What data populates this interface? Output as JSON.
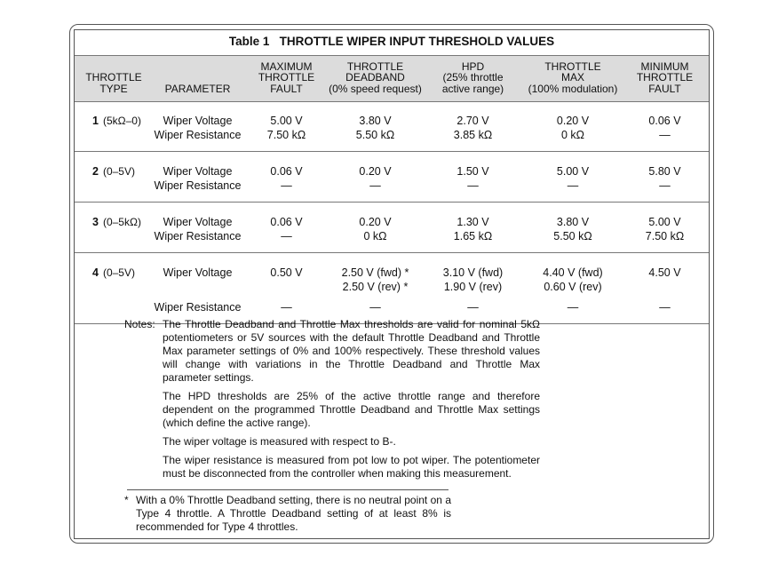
{
  "title": "Table 1   THROTTLE WIPER INPUT THRESHOLD VALUES",
  "table": {
    "headers": [
      [
        "THROTTLE",
        "TYPE"
      ],
      [
        "PARAMETER"
      ],
      [
        "MAXIMUM",
        "THROTTLE",
        "FAULT"
      ],
      [
        "THROTTLE",
        "DEADBAND",
        "(0% speed request)"
      ],
      [
        "HPD",
        "(25% throttle",
        "active range)"
      ],
      [
        "THROTTLE",
        "MAX",
        "(100% modulation)"
      ],
      [
        "MINIMUM",
        "THROTTLE",
        "FAULT"
      ]
    ],
    "groups": [
      {
        "type": "1",
        "type_detail": "(5kΩ–0)",
        "rows": [
          [
            "Wiper Voltage",
            "5.00 V",
            "3.80 V",
            "2.70 V",
            "0.20 V",
            "0.06 V"
          ],
          [
            "Wiper Resistance",
            "7.50 kΩ",
            "5.50 kΩ",
            "3.85 kΩ",
            "0 kΩ",
            "—"
          ]
        ]
      },
      {
        "type": "2",
        "type_detail": "(0–5V)",
        "rows": [
          [
            "Wiper Voltage",
            "0.06 V",
            "0.20 V",
            "1.50 V",
            "5.00 V",
            "5.80 V"
          ],
          [
            "Wiper Resistance",
            "—",
            "—",
            "—",
            "—",
            "—"
          ]
        ]
      },
      {
        "type": "3",
        "type_detail": "(0–5kΩ)",
        "rows": [
          [
            "Wiper Voltage",
            "0.06 V",
            "0.20 V",
            "1.30 V",
            "3.80 V",
            "5.00 V"
          ],
          [
            "Wiper Resistance",
            "—",
            "0 kΩ",
            "1.65 kΩ",
            "5.50 kΩ",
            "7.50 kΩ"
          ]
        ]
      },
      {
        "type": "4",
        "type_detail": "(0–5V)",
        "rows": [
          [
            "Wiper Voltage",
            "0.50 V",
            [
              "2.50 V (fwd) *",
              "2.50 V (rev) *"
            ],
            [
              "3.10 V (fwd)",
              "1.90 V (rev)"
            ],
            [
              "4.40 V (fwd)",
              "0.60 V (rev)"
            ],
            "4.50 V"
          ],
          [
            "Wiper Resistance",
            "—",
            "—",
            "—",
            "—",
            "—"
          ]
        ]
      }
    ]
  },
  "notes": {
    "label": "Notes:",
    "paragraphs": [
      "The Throttle Deadband and Throttle Max thresholds are valid for nominal 5kΩ potentiometers or 5V sources with the default Throttle Deadband and Throttle Max parameter settings of 0% and 100% respectively. These threshold values will change with variations in the Throttle Deadband and Throttle Max parameter settings.",
      "The HPD thresholds are 25% of the active throttle range and therefore dependent on the programmed Throttle Deadband and Throttle Max settings (which define the active range).",
      "The wiper voltage is measured with respect to B-.",
      "The wiper resistance is measured from pot low to pot wiper. The potentiometer must be disconnected from the controller when making this measurement."
    ]
  },
  "footnote": {
    "marker": "*",
    "text": "With a 0% Throttle Deadband setting, there is no neutral point on a Type 4 throttle. A Throttle Deadband setting of at least 8% is recommended for Type 4 throttles."
  }
}
